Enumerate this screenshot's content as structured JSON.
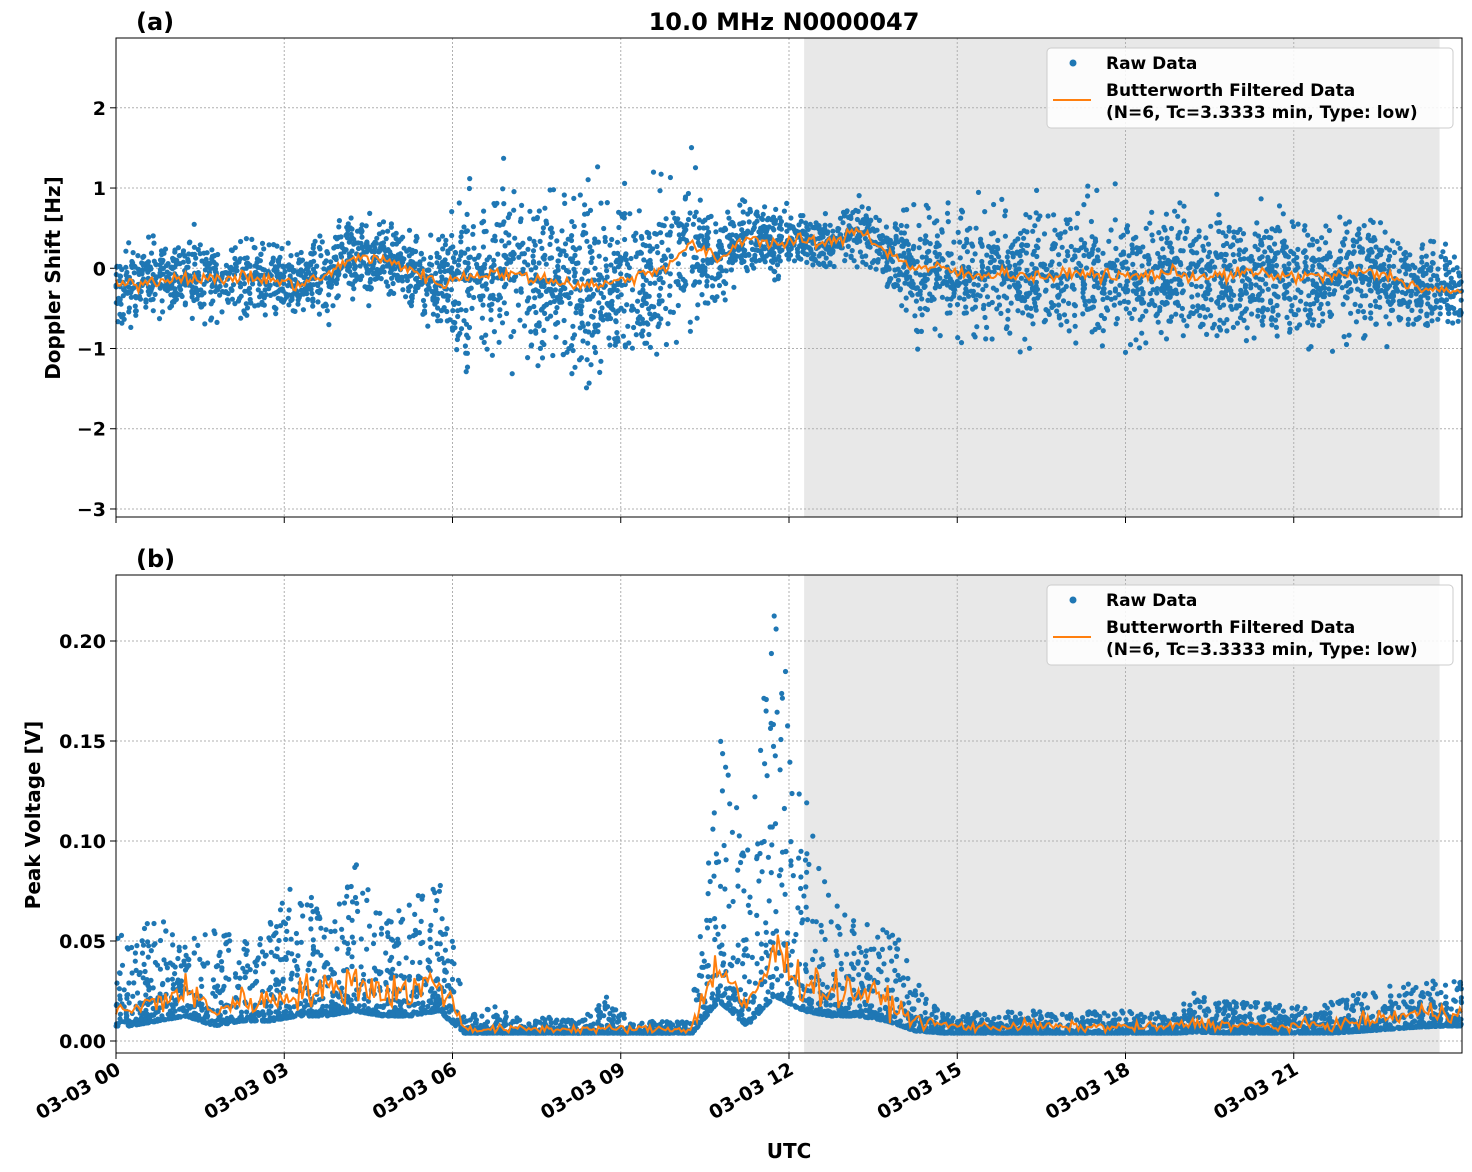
{
  "chart_data": [
    {
      "type": "scatter",
      "panel_label": "(a)",
      "title": "10.0 MHz N0000047",
      "ylabel": "Doppler Shift [Hz]",
      "xlabel": "",
      "xlim_hours": [
        0,
        24
      ],
      "ylim": [
        -3.1,
        2.87
      ],
      "yticks": [
        2,
        1,
        0,
        -1,
        -2,
        -3
      ],
      "ytick_labels": [
        "2",
        "1",
        "0",
        "−1",
        "−2",
        "−3"
      ],
      "grid": true,
      "shaded_region_hours": [
        12.27,
        23.6
      ],
      "legend": {
        "placement": "top-right",
        "entries": [
          "Raw Data",
          "Butterworth Filtered Data",
          "(N=6, Tc=3.3333 min, Type: low)"
        ]
      },
      "bin_hours": 0.5,
      "filtered_mean": [
        -0.2,
        -0.15,
        -0.1,
        -0.15,
        -0.1,
        -0.15,
        -0.2,
        -0.1,
        0.15,
        0.1,
        0.0,
        -0.2,
        -0.1,
        -0.05,
        -0.1,
        -0.15,
        -0.2,
        -0.2,
        -0.1,
        0.0,
        0.3,
        0.1,
        0.4,
        0.3,
        0.35,
        0.3,
        0.5,
        0.2,
        0.0,
        0.0,
        -0.1,
        -0.05,
        -0.1,
        -0.1,
        -0.05,
        -0.1,
        -0.1,
        -0.05,
        -0.1,
        -0.1,
        -0.05,
        -0.1,
        -0.1,
        -0.1,
        -0.05,
        -0.1,
        -0.25,
        -0.3
      ],
      "raw_spread": [
        0.6,
        0.6,
        0.6,
        0.6,
        0.6,
        0.6,
        0.6,
        0.6,
        0.6,
        0.6,
        0.6,
        0.6,
        1.3,
        1.3,
        1.3,
        1.3,
        1.3,
        1.3,
        1.3,
        1.3,
        1.3,
        0.7,
        0.5,
        0.5,
        0.4,
        0.4,
        0.5,
        0.5,
        1.0,
        1.0,
        1.0,
        1.0,
        1.0,
        1.0,
        1.0,
        1.0,
        1.0,
        1.0,
        1.0,
        1.0,
        1.0,
        1.0,
        1.0,
        1.0,
        1.0,
        0.9,
        0.7,
        0.7
      ],
      "colors": {
        "raw": "#1f77b4",
        "filtered": "#ff7f0e",
        "shade": "#e8e8e8"
      }
    },
    {
      "type": "scatter",
      "panel_label": "(b)",
      "ylabel": "Peak Voltage [V]",
      "xlabel": "UTC",
      "xlim_hours": [
        0,
        24
      ],
      "ylim": [
        -0.006,
        0.233
      ],
      "yticks": [
        0,
        0.05,
        0.1,
        0.15,
        0.2
      ],
      "ytick_labels": [
        "0.00",
        "0.05",
        "0.10",
        "0.15",
        "0.20"
      ],
      "xticks_hours": [
        0,
        3,
        6,
        9,
        12,
        15,
        18,
        21
      ],
      "xtick_labels": [
        "03-03 00",
        "03-03 03",
        "03-03 06",
        "03-03 09",
        "03-03 12",
        "03-03 15",
        "03-03 18",
        "03-03 21"
      ],
      "grid": true,
      "shaded_region_hours": [
        12.27,
        23.6
      ],
      "legend": {
        "placement": "top-right",
        "entries": [
          "Raw Data",
          "Butterworth Filtered Data",
          "(N=6, Tc=3.3333 min, Type: low)"
        ]
      },
      "bin_hours": 0.5,
      "filtered_mean": [
        0.015,
        0.02,
        0.025,
        0.015,
        0.02,
        0.02,
        0.025,
        0.025,
        0.03,
        0.025,
        0.025,
        0.03,
        0.006,
        0.006,
        0.006,
        0.006,
        0.006,
        0.006,
        0.006,
        0.006,
        0.006,
        0.04,
        0.015,
        0.045,
        0.03,
        0.025,
        0.025,
        0.02,
        0.01,
        0.008,
        0.007,
        0.007,
        0.008,
        0.007,
        0.007,
        0.007,
        0.007,
        0.007,
        0.009,
        0.008,
        0.008,
        0.007,
        0.008,
        0.008,
        0.01,
        0.012,
        0.014,
        0.015
      ],
      "raw_max": [
        0.055,
        0.065,
        0.05,
        0.06,
        0.05,
        0.065,
        0.085,
        0.06,
        0.09,
        0.065,
        0.07,
        0.088,
        0.012,
        0.018,
        0.01,
        0.012,
        0.01,
        0.022,
        0.01,
        0.01,
        0.01,
        0.16,
        0.095,
        0.222,
        0.135,
        0.07,
        0.06,
        0.07,
        0.03,
        0.015,
        0.015,
        0.015,
        0.015,
        0.015,
        0.015,
        0.015,
        0.015,
        0.015,
        0.025,
        0.02,
        0.02,
        0.018,
        0.018,
        0.02,
        0.025,
        0.028,
        0.03,
        0.03
      ],
      "colors": {
        "raw": "#1f77b4",
        "filtered": "#ff7f0e",
        "shade": "#e8e8e8"
      }
    }
  ]
}
